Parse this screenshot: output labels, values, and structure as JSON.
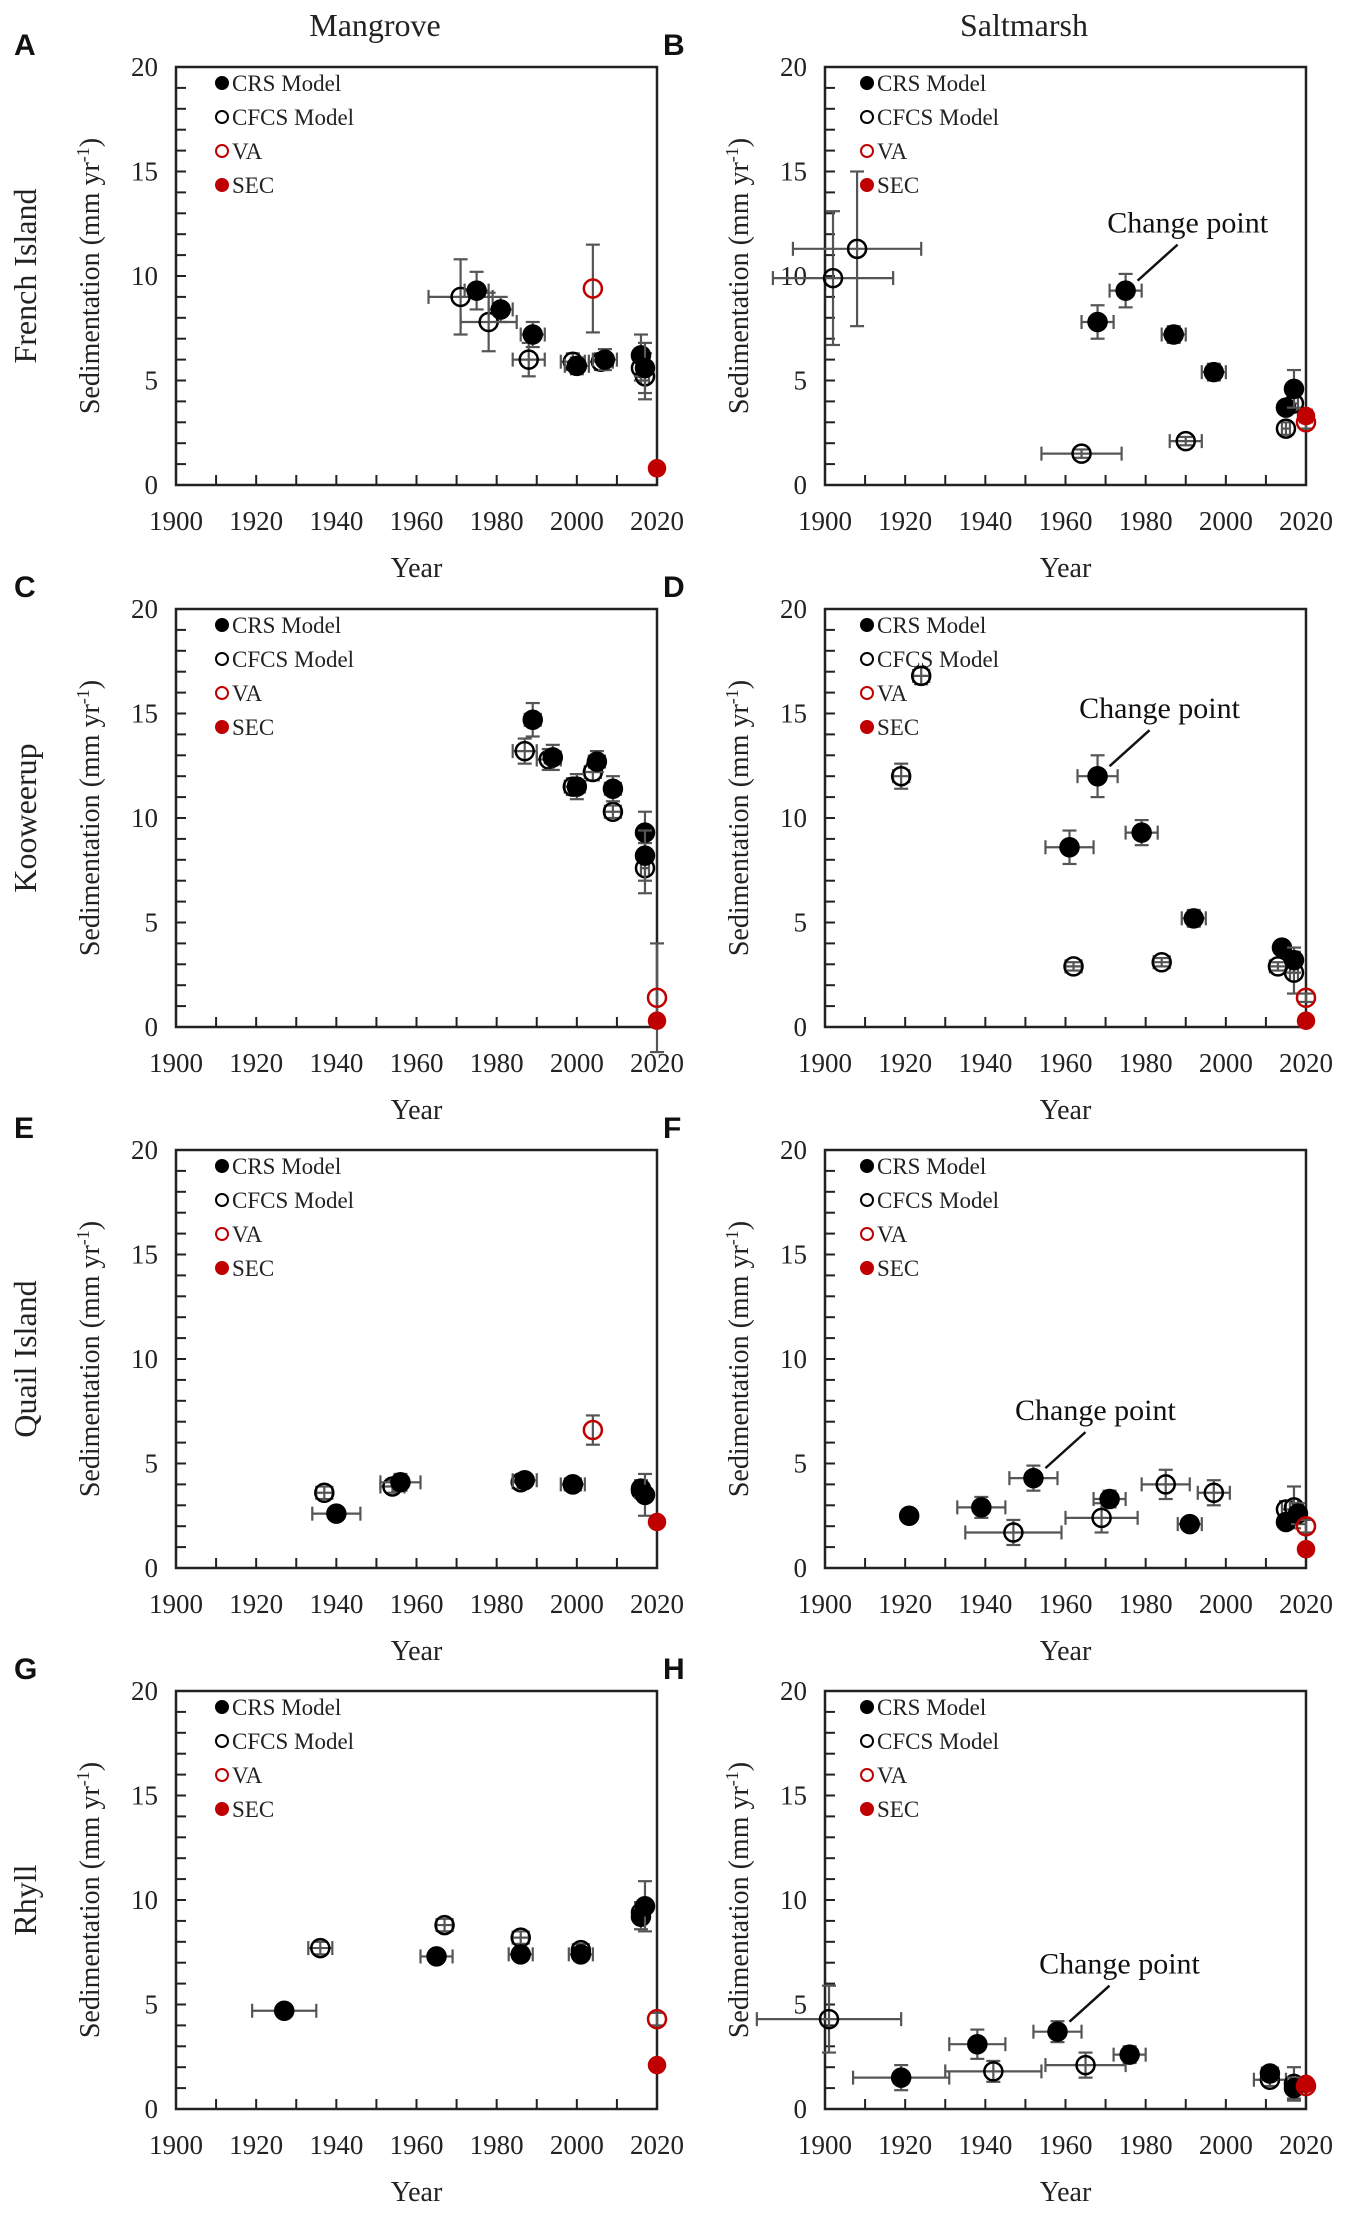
{
  "colors": {
    "crs": "#000000",
    "cfcs": "#000000",
    "va": "#c00000",
    "sec": "#c00000",
    "errorbar": "#555555"
  },
  "chart_data": {
    "type": "scatter",
    "column_titles": [
      "Mangrove",
      "Saltmarsh"
    ],
    "xlabel": "Year",
    "ylabel": "Sedimentation (mm yr",
    "ylabel_sup": "-1",
    "ylabel_end": ")",
    "xlim": [
      1900,
      2020
    ],
    "ylim": [
      0,
      20
    ],
    "xticks": [
      1900,
      1920,
      1940,
      1960,
      1980,
      2000,
      2020
    ],
    "yticks": [
      0,
      5,
      10,
      15,
      20
    ],
    "legend": [
      "CRS Model",
      "CFCS Model",
      "VA",
      "SEC"
    ],
    "legend_placement": "top-left",
    "annotation_text": "Change point",
    "panels": [
      {
        "letter": "A",
        "site": "French Island",
        "habitat": "Mangrove",
        "crs": [
          [
            1975,
            9.3,
            0.9,
            3
          ],
          [
            1981,
            8.4,
            0.6,
            3
          ],
          [
            1989,
            7.2,
            0.6,
            3
          ],
          [
            2000,
            5.7,
            0.4,
            3
          ],
          [
            2007,
            6.0,
            0.5,
            3
          ],
          [
            2016,
            6.2,
            1.0,
            1
          ],
          [
            2017,
            5.6,
            1.2,
            1
          ]
        ],
        "cfcs": [
          [
            1971,
            9.0,
            1.8,
            8
          ],
          [
            1978,
            7.8,
            1.4,
            7
          ],
          [
            1988,
            6.0,
            0.8,
            4
          ],
          [
            1999,
            5.9,
            0.4,
            3
          ],
          [
            2006,
            5.9,
            0.4,
            3
          ],
          [
            2016,
            5.6,
            0.6,
            1
          ],
          [
            2017,
            5.2,
            1.1,
            1
          ]
        ],
        "va": [
          [
            2004,
            9.4,
            2.1
          ]
        ],
        "sec": [
          [
            2020,
            0.8,
            0.2
          ]
        ],
        "annotation": null
      },
      {
        "letter": "B",
        "site": "",
        "habitat": "Saltmarsh",
        "crs": [
          [
            1968,
            7.8,
            0.8,
            4
          ],
          [
            1975,
            9.3,
            0.8,
            4
          ],
          [
            1987,
            7.2,
            0.4,
            3
          ],
          [
            1997,
            5.4,
            0.4,
            3
          ],
          [
            2015,
            3.7,
            0.3,
            1
          ],
          [
            2017,
            4.6,
            0.9,
            1
          ]
        ],
        "cfcs": [
          [
            1902,
            9.9,
            3.2,
            15
          ],
          [
            1908,
            11.3,
            3.7,
            16
          ],
          [
            1964,
            1.5,
            0.2,
            10
          ],
          [
            1990,
            2.1,
            0.2,
            4
          ],
          [
            2015,
            2.7,
            0.3,
            1
          ],
          [
            2017,
            3.9,
            0.3,
            1
          ]
        ],
        "va": [
          [
            2020,
            3.0,
            0.3
          ]
        ],
        "sec": [
          [
            2020,
            3.3,
            0.3
          ]
        ],
        "annotation": {
          "target": [
            1975,
            9.3
          ]
        }
      },
      {
        "letter": "C",
        "site": "Kooweerup",
        "habitat": "Mangrove",
        "crs": [
          [
            1989,
            14.7,
            0.8,
            2
          ],
          [
            1994,
            12.9,
            0.6,
            2
          ],
          [
            2000,
            11.5,
            0.6,
            2
          ],
          [
            2005,
            12.7,
            0.5,
            2
          ],
          [
            2009,
            11.4,
            0.6,
            2
          ],
          [
            2017,
            9.3,
            1.0,
            1
          ],
          [
            2017,
            8.2,
            1.2,
            1
          ]
        ],
        "cfcs": [
          [
            1987,
            13.2,
            0.6,
            3
          ],
          [
            1993,
            12.8,
            0.5,
            3
          ],
          [
            1999,
            11.5,
            0.4,
            2
          ],
          [
            2004,
            12.2,
            0.4,
            2
          ],
          [
            2009,
            10.3,
            0.3,
            2
          ],
          [
            2017,
            7.6,
            1.2,
            1
          ]
        ],
        "va": [
          [
            2020,
            1.4,
            2.6
          ]
        ],
        "sec": [
          [
            2020,
            0.3,
            0.1
          ]
        ],
        "annotation": null
      },
      {
        "letter": "D",
        "site": "",
        "habitat": "Saltmarsh",
        "crs": [
          [
            1961,
            8.6,
            0.8,
            6
          ],
          [
            1968,
            12.0,
            1.0,
            5
          ],
          [
            1979,
            9.3,
            0.6,
            4
          ],
          [
            1992,
            5.2,
            0.4,
            3
          ],
          [
            2014,
            3.8,
            0.3,
            1
          ],
          [
            2017,
            3.2,
            0.6,
            1
          ]
        ],
        "cfcs": [
          [
            1919,
            12.0,
            0.6,
            2
          ],
          [
            1924,
            16.8,
            0.4,
            2
          ],
          [
            1962,
            2.9,
            0.2,
            2
          ],
          [
            1984,
            3.1,
            0.2,
            2
          ],
          [
            2013,
            2.9,
            0.2,
            2
          ],
          [
            2017,
            2.6,
            1.0,
            1
          ]
        ],
        "va": [
          [
            2020,
            1.4,
            0.2
          ]
        ],
        "sec": [
          [
            2020,
            0.3,
            0.1
          ]
        ],
        "annotation": {
          "target": [
            1968,
            12.0
          ]
        }
      },
      {
        "letter": "E",
        "site": "Quail Island",
        "habitat": "Mangrove",
        "crs": [
          [
            1940,
            2.6,
            0.3,
            6
          ],
          [
            1956,
            4.1,
            0.4,
            5
          ],
          [
            1987,
            4.2,
            0.3,
            3
          ],
          [
            1999,
            4.0,
            0.3,
            3
          ],
          [
            2016,
            3.8,
            0.4,
            1
          ],
          [
            2017,
            3.5,
            1.0,
            1
          ]
        ],
        "cfcs": [
          [
            1937,
            3.6,
            0.3,
            2
          ],
          [
            1954,
            3.9,
            0.3,
            3
          ],
          [
            1986,
            4.1,
            0.3,
            2
          ],
          [
            1999,
            4.0,
            0.3,
            2
          ],
          [
            2016,
            3.7,
            0.3,
            1
          ]
        ],
        "va": [
          [
            2004,
            6.6,
            0.7
          ]
        ],
        "sec": [
          [
            2020,
            2.2,
            0.2
          ]
        ],
        "annotation": null
      },
      {
        "letter": "F",
        "site": "",
        "habitat": "Saltmarsh",
        "crs": [
          [
            1921,
            2.5,
            0.2,
            1
          ],
          [
            1939,
            2.9,
            0.5,
            6
          ],
          [
            1952,
            4.3,
            0.6,
            6
          ],
          [
            1971,
            3.3,
            0.4,
            4
          ],
          [
            1991,
            2.1,
            0.2,
            3
          ],
          [
            2015,
            2.2,
            0.3,
            1
          ],
          [
            2018,
            2.6,
            0.5,
            1
          ]
        ],
        "cfcs": [
          [
            1947,
            1.7,
            0.6,
            12
          ],
          [
            1969,
            2.4,
            0.7,
            9
          ],
          [
            1985,
            4.0,
            0.7,
            6
          ],
          [
            1997,
            3.6,
            0.6,
            4
          ],
          [
            2015,
            2.8,
            0.4,
            1
          ],
          [
            2017,
            2.9,
            1.0,
            1
          ]
        ],
        "va": [
          [
            2020,
            2.0,
            0.3
          ]
        ],
        "sec": [
          [
            2020,
            0.9,
            0.2
          ]
        ],
        "annotation": {
          "target": [
            1952,
            4.3
          ]
        }
      },
      {
        "letter": "G",
        "site": "Rhyll",
        "habitat": "Mangrove",
        "crs": [
          [
            1927,
            4.7,
            0.3,
            8
          ],
          [
            1965,
            7.3,
            0.3,
            4
          ],
          [
            1986,
            7.4,
            0.3,
            3
          ],
          [
            2001,
            7.4,
            0.3,
            3
          ],
          [
            2016,
            9.2,
            0.6,
            1
          ],
          [
            2017,
            9.7,
            1.2,
            1
          ]
        ],
        "cfcs": [
          [
            1936,
            7.7,
            0.3,
            3
          ],
          [
            1967,
            8.8,
            0.3,
            2
          ],
          [
            1986,
            8.2,
            0.3,
            2
          ],
          [
            2001,
            7.6,
            0.3,
            2
          ],
          [
            2016,
            9.4,
            0.5,
            1
          ]
        ],
        "va": [
          [
            2020,
            4.3,
            0.3
          ]
        ],
        "sec": [
          [
            2020,
            2.1,
            0.2
          ]
        ],
        "annotation": null
      },
      {
        "letter": "H",
        "site": "",
        "habitat": "Saltmarsh",
        "crs": [
          [
            1919,
            1.5,
            0.6,
            12
          ],
          [
            1938,
            3.1,
            0.7,
            7
          ],
          [
            1958,
            3.7,
            0.5,
            6
          ],
          [
            1976,
            2.6,
            0.4,
            4
          ],
          [
            2011,
            1.7,
            0.3,
            2
          ],
          [
            2017,
            1.0,
            0.5,
            1
          ]
        ],
        "cfcs": [
          [
            1901,
            4.3,
            1.6,
            18
          ],
          [
            1942,
            1.8,
            0.5,
            12
          ],
          [
            1965,
            2.1,
            0.6,
            10
          ],
          [
            2011,
            1.4,
            0.3,
            4
          ],
          [
            2017,
            1.2,
            0.8,
            1
          ]
        ],
        "va": [
          [
            2020,
            1.1,
            0.2
          ]
        ],
        "sec": [
          [
            2020,
            1.2,
            0.2
          ]
        ],
        "annotation": {
          "target": [
            1958,
            3.7
          ]
        }
      }
    ]
  }
}
